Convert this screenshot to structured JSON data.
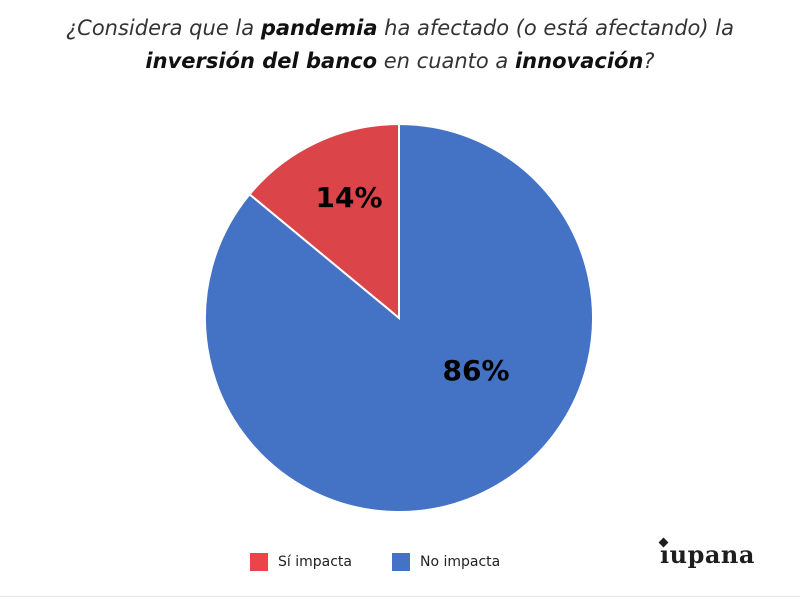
{
  "title": {
    "line1": [
      {
        "text": "¿Considera que la ",
        "bold": false
      },
      {
        "text": "pandemia",
        "bold": true
      },
      {
        "text": " ha afectado (o está afectando) la",
        "bold": false
      }
    ],
    "line2": [
      {
        "text": "inversión del banco",
        "bold": true
      },
      {
        "text": " en cuanto a ",
        "bold": false
      },
      {
        "text": "innovación",
        "bold": true
      },
      {
        "text": "?",
        "bold": false
      }
    ]
  },
  "chart_data": {
    "type": "pie",
    "title": "¿Considera que la pandemia ha afectado (o está afectando) la inversión del banco en cuanto a innovación?",
    "slices": [
      {
        "name": "Sí impacta",
        "value": 14,
        "label": "14%",
        "color": "#db4449"
      },
      {
        "name": "No impacta",
        "value": 86,
        "label": "86%",
        "color": "#4472c4"
      }
    ],
    "legend_position": "bottom"
  },
  "legend": [
    {
      "label": "Sí impacta",
      "color": "#ee4349"
    },
    {
      "label": "No impacta",
      "color": "#4472c4"
    }
  ],
  "logo": {
    "text": "ıupana",
    "icon": "diamond-logo-icon"
  }
}
